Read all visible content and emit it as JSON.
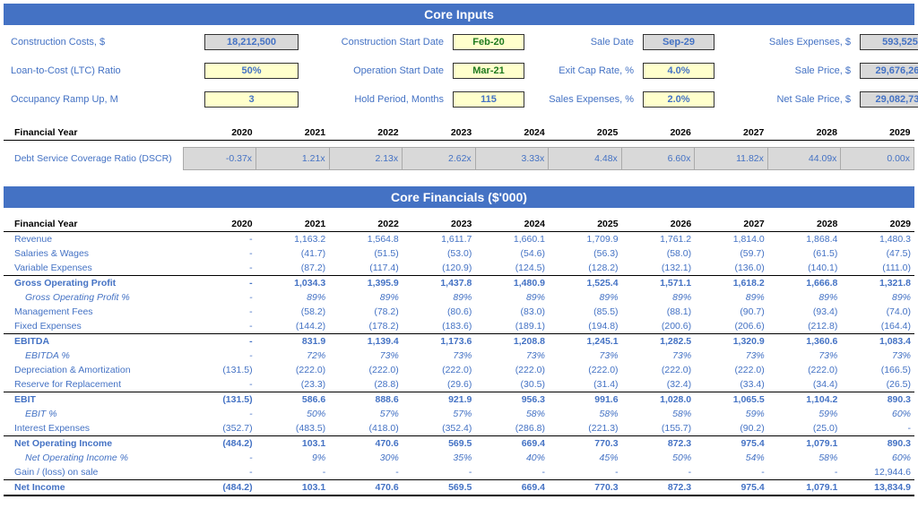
{
  "headers": {
    "core_inputs": "Core Inputs",
    "core_financials": "Core Financials ($'000)"
  },
  "inputs": {
    "row1": {
      "l1": "Construction Costs, $",
      "v1": "18,212,500",
      "l2": "Construction Start Date",
      "v2": "Feb-20",
      "l3": "Sale Date",
      "v3": "Sep-29",
      "l4": "Sales Expenses, $",
      "v4": "593,525"
    },
    "row2": {
      "l1": "Loan-to-Cost (LTC) Ratio",
      "v1": "50%",
      "l2": "Operation Start Date",
      "v2": "Mar-21",
      "l3": "Exit Cap Rate, %",
      "v3": "4.0%",
      "l4": "Sale Price, $",
      "v4": "29,676,260"
    },
    "row3": {
      "l1": "Occupancy Ramp Up, M",
      "v1": "3",
      "l2": "Hold Period, Months",
      "v2": "115",
      "l3": "Sales Expenses, %",
      "v3": "2.0%",
      "l4": "Net Sale Price, $",
      "v4": "29,082,735"
    }
  },
  "fy_label": "Financial Year",
  "years": [
    "2020",
    "2021",
    "2022",
    "2023",
    "2024",
    "2025",
    "2026",
    "2027",
    "2028",
    "2029"
  ],
  "dscr": {
    "label": "Debt Service Coverage Ratio (DSCR)",
    "values": [
      "-0.37x",
      "1.21x",
      "2.13x",
      "2.62x",
      "3.33x",
      "4.48x",
      "6.60x",
      "11.82x",
      "44.09x",
      "0.00x"
    ]
  },
  "fin": {
    "rev": {
      "l": "Revenue",
      "v": [
        "-",
        "1,163.2",
        "1,564.8",
        "1,611.7",
        "1,660.1",
        "1,709.9",
        "1,761.2",
        "1,814.0",
        "1,868.4",
        "1,480.3"
      ]
    },
    "sal": {
      "l": "Salaries & Wages",
      "v": [
        "-",
        "(41.7)",
        "(51.5)",
        "(53.0)",
        "(54.6)",
        "(56.3)",
        "(58.0)",
        "(59.7)",
        "(61.5)",
        "(47.5)"
      ]
    },
    "varx": {
      "l": "Variable Expenses",
      "v": [
        "-",
        "(87.2)",
        "(117.4)",
        "(120.9)",
        "(124.5)",
        "(128.2)",
        "(132.1)",
        "(136.0)",
        "(140.1)",
        "(111.0)"
      ]
    },
    "gop": {
      "l": "Gross Operating Profit",
      "v": [
        "-",
        "1,034.3",
        "1,395.9",
        "1,437.8",
        "1,480.9",
        "1,525.4",
        "1,571.1",
        "1,618.2",
        "1,666.8",
        "1,321.8"
      ]
    },
    "gopm": {
      "l": "Gross Operating Profit %",
      "v": [
        "-",
        "89%",
        "89%",
        "89%",
        "89%",
        "89%",
        "89%",
        "89%",
        "89%",
        "89%"
      ]
    },
    "mgmt": {
      "l": "Management Fees",
      "v": [
        "-",
        "(58.2)",
        "(78.2)",
        "(80.6)",
        "(83.0)",
        "(85.5)",
        "(88.1)",
        "(90.7)",
        "(93.4)",
        "(74.0)"
      ]
    },
    "fixx": {
      "l": "Fixed Expenses",
      "v": [
        "-",
        "(144.2)",
        "(178.2)",
        "(183.6)",
        "(189.1)",
        "(194.8)",
        "(200.6)",
        "(206.6)",
        "(212.8)",
        "(164.4)"
      ]
    },
    "ebitda": {
      "l": "EBITDA",
      "v": [
        "-",
        "831.9",
        "1,139.4",
        "1,173.6",
        "1,208.8",
        "1,245.1",
        "1,282.5",
        "1,320.9",
        "1,360.6",
        "1,083.4"
      ]
    },
    "ebm": {
      "l": "EBITDA %",
      "v": [
        "-",
        "72%",
        "73%",
        "73%",
        "73%",
        "73%",
        "73%",
        "73%",
        "73%",
        "73%"
      ]
    },
    "da": {
      "l": "Depreciation & Amortization",
      "v": [
        "(131.5)",
        "(222.0)",
        "(222.0)",
        "(222.0)",
        "(222.0)",
        "(222.0)",
        "(222.0)",
        "(222.0)",
        "(222.0)",
        "(166.5)"
      ]
    },
    "rfr": {
      "l": "Reserve for Replacement",
      "v": [
        "-",
        "(23.3)",
        "(28.8)",
        "(29.6)",
        "(30.5)",
        "(31.4)",
        "(32.4)",
        "(33.4)",
        "(34.4)",
        "(26.5)"
      ]
    },
    "ebit": {
      "l": "EBIT",
      "v": [
        "(131.5)",
        "586.6",
        "888.6",
        "921.9",
        "956.3",
        "991.6",
        "1,028.0",
        "1,065.5",
        "1,104.2",
        "890.3"
      ]
    },
    "ebitm": {
      "l": "EBIT %",
      "v": [
        "-",
        "50%",
        "57%",
        "57%",
        "58%",
        "58%",
        "58%",
        "59%",
        "59%",
        "60%"
      ]
    },
    "intx": {
      "l": "Interest Expenses",
      "v": [
        "(352.7)",
        "(483.5)",
        "(418.0)",
        "(352.4)",
        "(286.8)",
        "(221.3)",
        "(155.7)",
        "(90.2)",
        "(25.0)",
        "-"
      ]
    },
    "noi": {
      "l": "Net Operating Income",
      "v": [
        "(484.2)",
        "103.1",
        "470.6",
        "569.5",
        "669.4",
        "770.3",
        "872.3",
        "975.4",
        "1,079.1",
        "890.3"
      ]
    },
    "noim": {
      "l": "Net Operating Income %",
      "v": [
        "-",
        "9%",
        "30%",
        "35%",
        "40%",
        "45%",
        "50%",
        "54%",
        "58%",
        "60%"
      ]
    },
    "gain": {
      "l": "Gain / (loss) on sale",
      "v": [
        "-",
        "-",
        "-",
        "-",
        "-",
        "-",
        "-",
        "-",
        "-",
        "12,944.6"
      ]
    },
    "ni": {
      "l": "Net Income",
      "v": [
        "(484.2)",
        "103.1",
        "470.6",
        "569.5",
        "669.4",
        "770.3",
        "872.3",
        "975.4",
        "1,079.1",
        "13,834.9"
      ]
    }
  }
}
